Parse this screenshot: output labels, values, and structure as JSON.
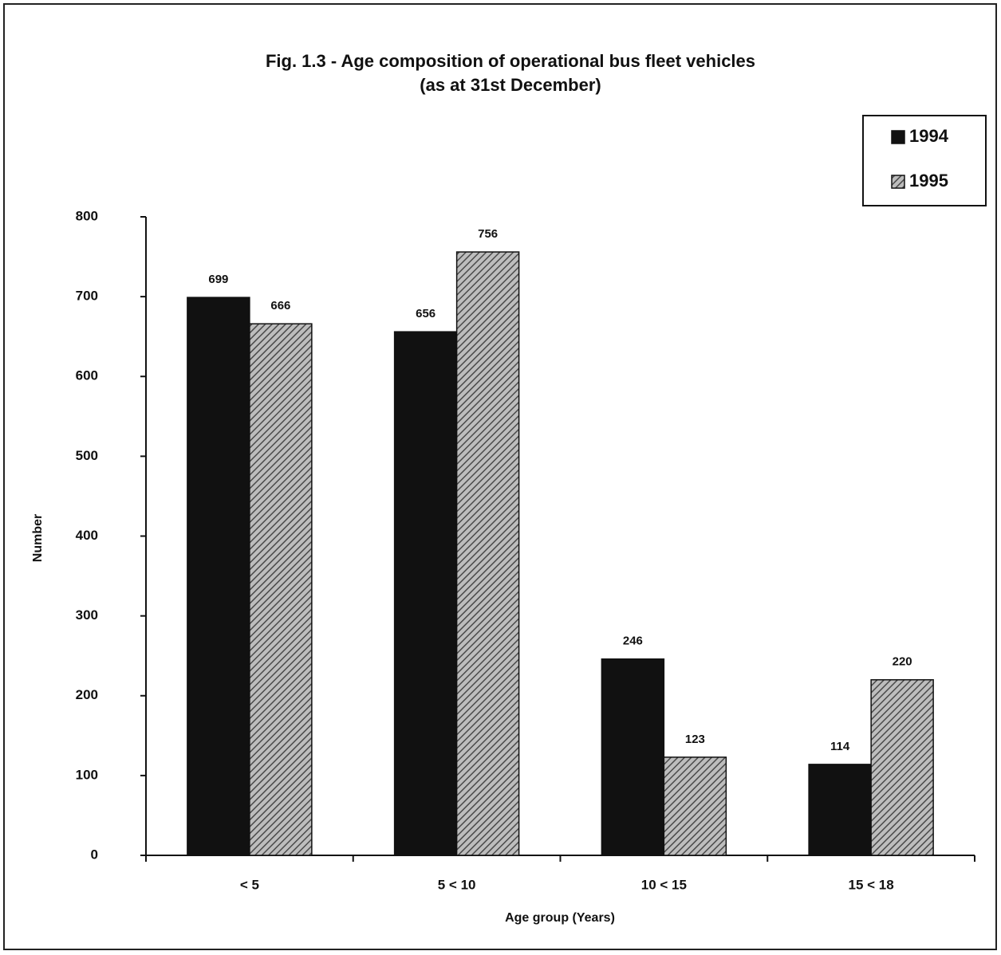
{
  "chart_data": {
    "type": "bar",
    "title": "Fig. 1.3 - Age composition of operational bus fleet vehicles",
    "subtitle": "(as at 31st December)",
    "x_label": "Age group (Years)",
    "y_label": "Number",
    "categories": [
      "<  5",
      "5 < 10",
      "10 < 15",
      "15 < 18"
    ],
    "series": [
      {
        "name": "1994",
        "color": "#111111",
        "hatch": false,
        "values": [
          699,
          656,
          246,
          114
        ]
      },
      {
        "name": "1995",
        "color": "#4a4a4a",
        "hatch": true,
        "values": [
          666,
          756,
          123,
          220
        ]
      }
    ],
    "ylim": [
      0,
      800
    ],
    "yticks": [
      0,
      100,
      200,
      300,
      400,
      500,
      600,
      700,
      800
    ],
    "grid": false,
    "legend": "top-right",
    "data_labels": true
  }
}
